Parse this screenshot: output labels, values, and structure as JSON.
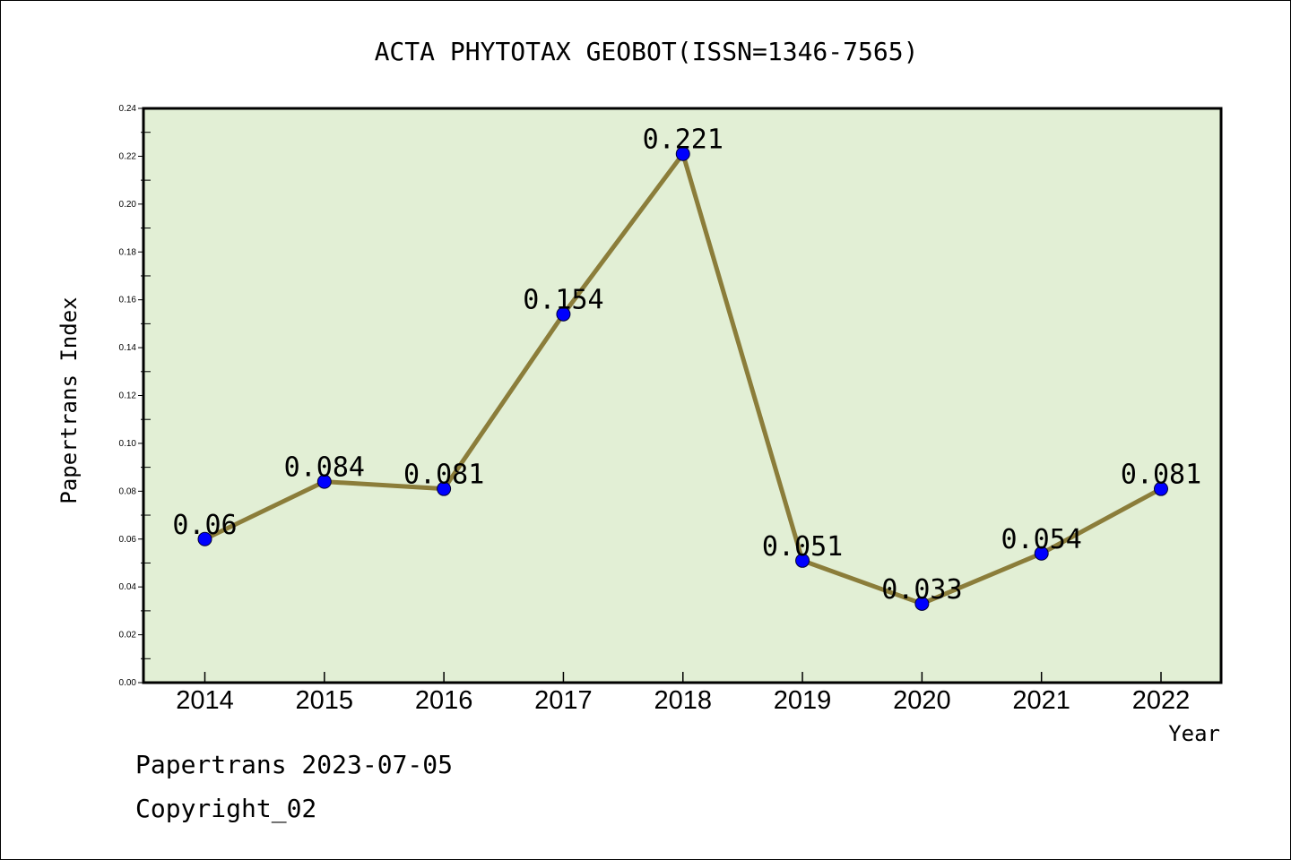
{
  "chart_data": {
    "type": "line",
    "title": "ACTA PHYTOTAX GEOBOT(ISSN=1346-7565)",
    "xlabel": "Year",
    "ylabel": "Papertrans Index",
    "categories": [
      "2014",
      "2015",
      "2016",
      "2017",
      "2018",
      "2019",
      "2020",
      "2021",
      "2022"
    ],
    "values": [
      0.06,
      0.084,
      0.081,
      0.154,
      0.221,
      0.051,
      0.033,
      0.054,
      0.081
    ],
    "data_labels": [
      "0.06",
      "0.084",
      "0.081",
      "0.154",
      "0.221",
      "0.051",
      "0.033",
      "0.054",
      "0.081"
    ],
    "ylim": [
      0,
      0.24
    ],
    "yticks": [
      "0.00",
      "0.02",
      "0.04",
      "0.06",
      "0.08",
      "0.10",
      "0.12",
      "0.14",
      "0.16",
      "0.18",
      "0.20",
      "0.22",
      "0.24"
    ],
    "grid": false,
    "legend": "none",
    "colors": {
      "plot_background": "#e2efd5",
      "line": "#8b7d3a",
      "marker": "#0000ff",
      "axis": "#000000"
    }
  },
  "footer": {
    "line1": "Papertrans 2023-07-05",
    "line2": "Copyright_02"
  }
}
